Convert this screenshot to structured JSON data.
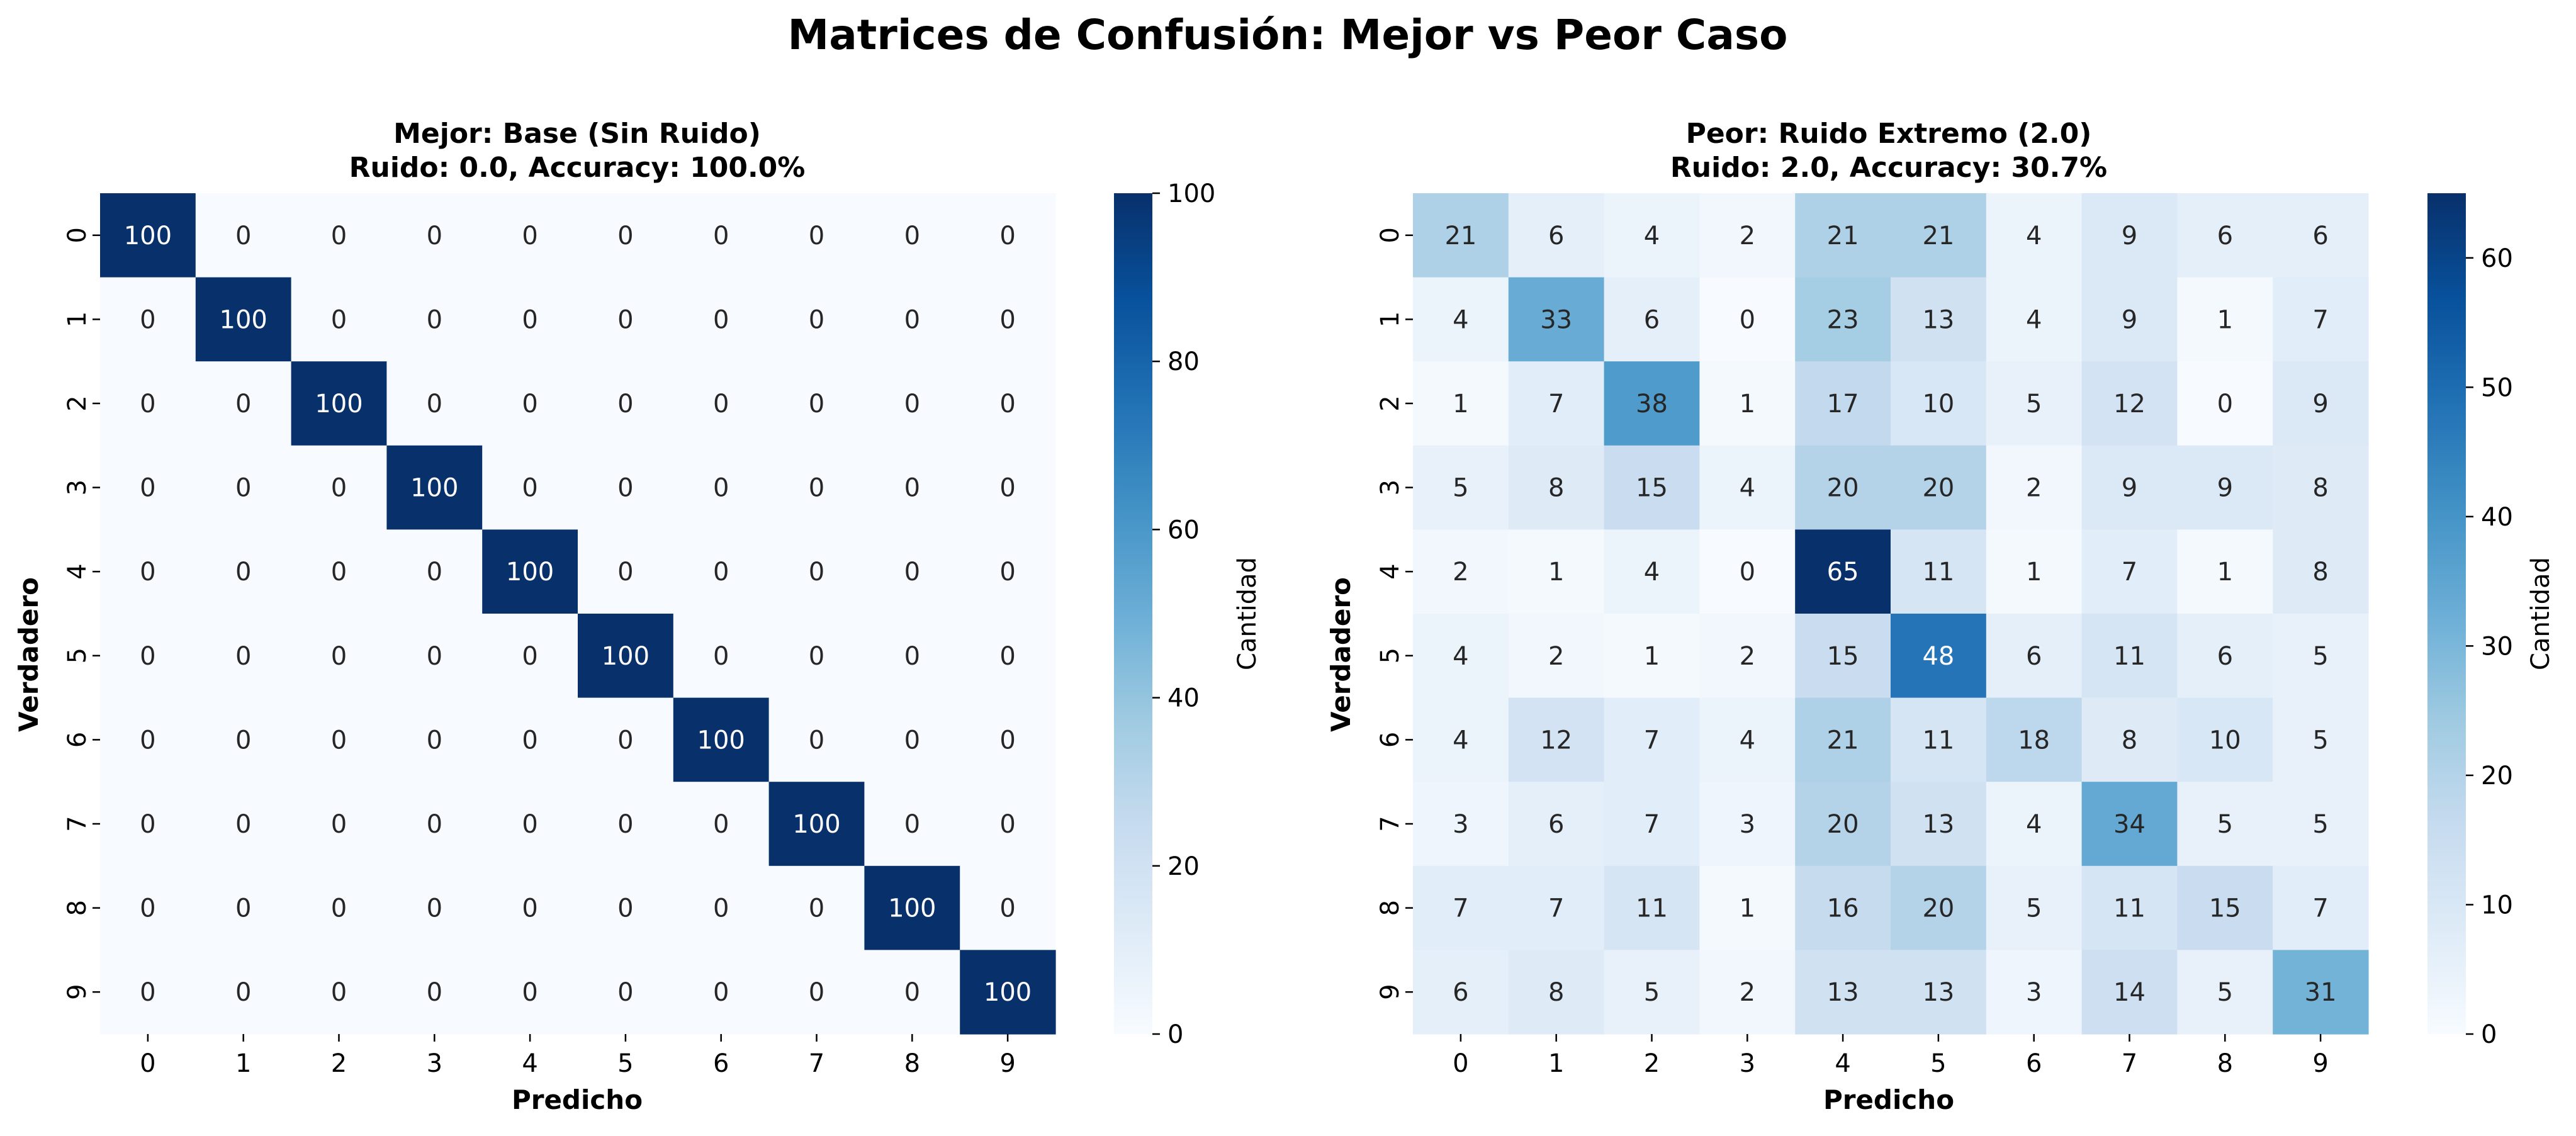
{
  "figure": {
    "suptitle": "Matrices de Confusión: Mejor vs Peor Caso"
  },
  "chart_data": [
    {
      "type": "heatmap",
      "title_line1": "Mejor: Base (Sin Ruido)",
      "title_line2": "Ruido: 0.0, Accuracy: 100.0%",
      "xlabel": "Predicho",
      "ylabel": "Verdadero",
      "x_categories": [
        "0",
        "1",
        "2",
        "3",
        "4",
        "5",
        "6",
        "7",
        "8",
        "9"
      ],
      "y_categories": [
        "0",
        "1",
        "2",
        "3",
        "4",
        "5",
        "6",
        "7",
        "8",
        "9"
      ],
      "colorbar_label": "Cantidad",
      "colorbar_range": [
        0,
        100
      ],
      "colorbar_ticks": [
        0,
        20,
        40,
        60,
        80,
        100
      ],
      "colormap": "Blues",
      "matrix": [
        [
          100,
          0,
          0,
          0,
          0,
          0,
          0,
          0,
          0,
          0
        ],
        [
          0,
          100,
          0,
          0,
          0,
          0,
          0,
          0,
          0,
          0
        ],
        [
          0,
          0,
          100,
          0,
          0,
          0,
          0,
          0,
          0,
          0
        ],
        [
          0,
          0,
          0,
          100,
          0,
          0,
          0,
          0,
          0,
          0
        ],
        [
          0,
          0,
          0,
          0,
          100,
          0,
          0,
          0,
          0,
          0
        ],
        [
          0,
          0,
          0,
          0,
          0,
          100,
          0,
          0,
          0,
          0
        ],
        [
          0,
          0,
          0,
          0,
          0,
          0,
          100,
          0,
          0,
          0
        ],
        [
          0,
          0,
          0,
          0,
          0,
          0,
          0,
          100,
          0,
          0
        ],
        [
          0,
          0,
          0,
          0,
          0,
          0,
          0,
          0,
          100,
          0
        ],
        [
          0,
          0,
          0,
          0,
          0,
          0,
          0,
          0,
          0,
          100
        ]
      ]
    },
    {
      "type": "heatmap",
      "title_line1": "Peor: Ruido Extremo (2.0)",
      "title_line2": "Ruido: 2.0, Accuracy: 30.7%",
      "xlabel": "Predicho",
      "ylabel": "Verdadero",
      "x_categories": [
        "0",
        "1",
        "2",
        "3",
        "4",
        "5",
        "6",
        "7",
        "8",
        "9"
      ],
      "y_categories": [
        "0",
        "1",
        "2",
        "3",
        "4",
        "5",
        "6",
        "7",
        "8",
        "9"
      ],
      "colorbar_label": "Cantidad",
      "colorbar_range": [
        0,
        65
      ],
      "colorbar_ticks": [
        0,
        10,
        20,
        30,
        40,
        50,
        60
      ],
      "colormap": "Blues",
      "matrix": [
        [
          21,
          6,
          4,
          2,
          21,
          21,
          4,
          9,
          6,
          6
        ],
        [
          4,
          33,
          6,
          0,
          23,
          13,
          4,
          9,
          1,
          7
        ],
        [
          1,
          7,
          38,
          1,
          17,
          10,
          5,
          12,
          0,
          9
        ],
        [
          5,
          8,
          15,
          4,
          20,
          20,
          2,
          9,
          9,
          8
        ],
        [
          2,
          1,
          4,
          0,
          65,
          11,
          1,
          7,
          1,
          8
        ],
        [
          4,
          2,
          1,
          2,
          15,
          48,
          6,
          11,
          6,
          5
        ],
        [
          4,
          12,
          7,
          4,
          21,
          11,
          18,
          8,
          10,
          5
        ],
        [
          3,
          6,
          7,
          3,
          20,
          13,
          4,
          34,
          5,
          5
        ],
        [
          7,
          7,
          11,
          1,
          16,
          20,
          5,
          11,
          15,
          7
        ],
        [
          6,
          8,
          5,
          2,
          13,
          13,
          3,
          14,
          5,
          31
        ]
      ]
    }
  ]
}
